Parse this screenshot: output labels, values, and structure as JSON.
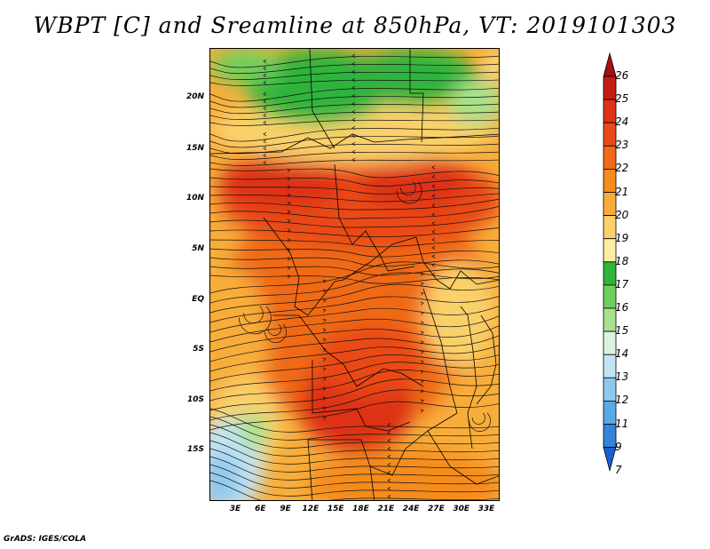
{
  "title": "WBPT [C] and Sreamline at 850hPa, VT: 2019101303",
  "credit": "GrADS: IGES/COLA",
  "map": {
    "lat_labels": [
      "20N",
      "15N",
      "10N",
      "5N",
      "EQ",
      "5S",
      "10S",
      "15S"
    ],
    "lon_labels": [
      "3E",
      "6E",
      "9E",
      "12E",
      "15E",
      "18E",
      "21E",
      "24E",
      "27E",
      "30E",
      "33E"
    ]
  },
  "colorbar": {
    "labels": [
      "26",
      "25",
      "24",
      "23",
      "22",
      "21",
      "20",
      "19",
      "18",
      "17",
      "16",
      "15",
      "14",
      "13",
      "12",
      "11",
      "9",
      "7"
    ],
    "colors": [
      "#a50f0f",
      "#c51d10",
      "#de3214",
      "#ea4a17",
      "#f06a19",
      "#f58c1c",
      "#f8ad3a",
      "#fad06a",
      "#fbeea3",
      "#2fb43c",
      "#6fcf5c",
      "#a8e28f",
      "#ddf3df",
      "#c3e4f4",
      "#8fc8ee",
      "#5ba8e6",
      "#3484dc",
      "#1a5fcf"
    ]
  }
}
